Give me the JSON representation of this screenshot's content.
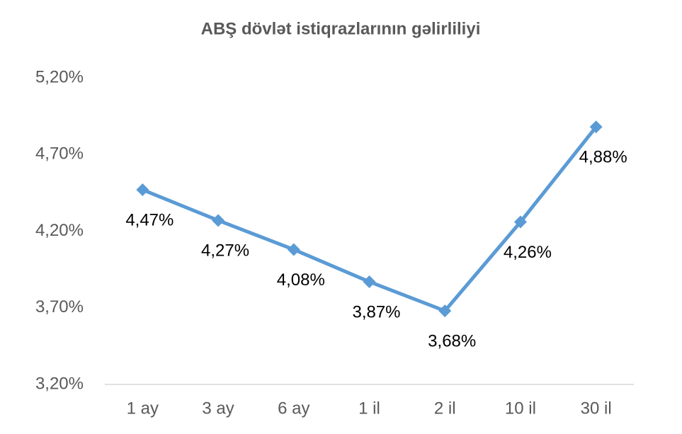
{
  "chart_data": {
    "type": "line",
    "title": "ABŞ dövlət istiqrazlarının gəlirliliyi",
    "categories": [
      "1 ay",
      "3 ay",
      "6 ay",
      "1 il",
      "2 il",
      "10 il",
      "30 il"
    ],
    "series": [
      {
        "color": "#5b9bd5",
        "values": [
          4.47,
          4.27,
          4.08,
          3.87,
          3.68,
          4.26,
          4.88
        ],
        "value_labels": [
          "4,47%",
          "4,27%",
          "4,08%",
          "3,87%",
          "3,68%",
          "4,26%",
          "4,88%"
        ]
      }
    ],
    "ylim": [
      3.2,
      5.2
    ],
    "yticks": [
      {
        "value": 3.2,
        "label": "3,20%"
      },
      {
        "value": 3.7,
        "label": "3,70%"
      },
      {
        "value": 4.2,
        "label": "4,20%"
      },
      {
        "value": 4.7,
        "label": "4,70%"
      },
      {
        "value": 5.2,
        "label": "5,20%"
      }
    ],
    "grid": false
  }
}
